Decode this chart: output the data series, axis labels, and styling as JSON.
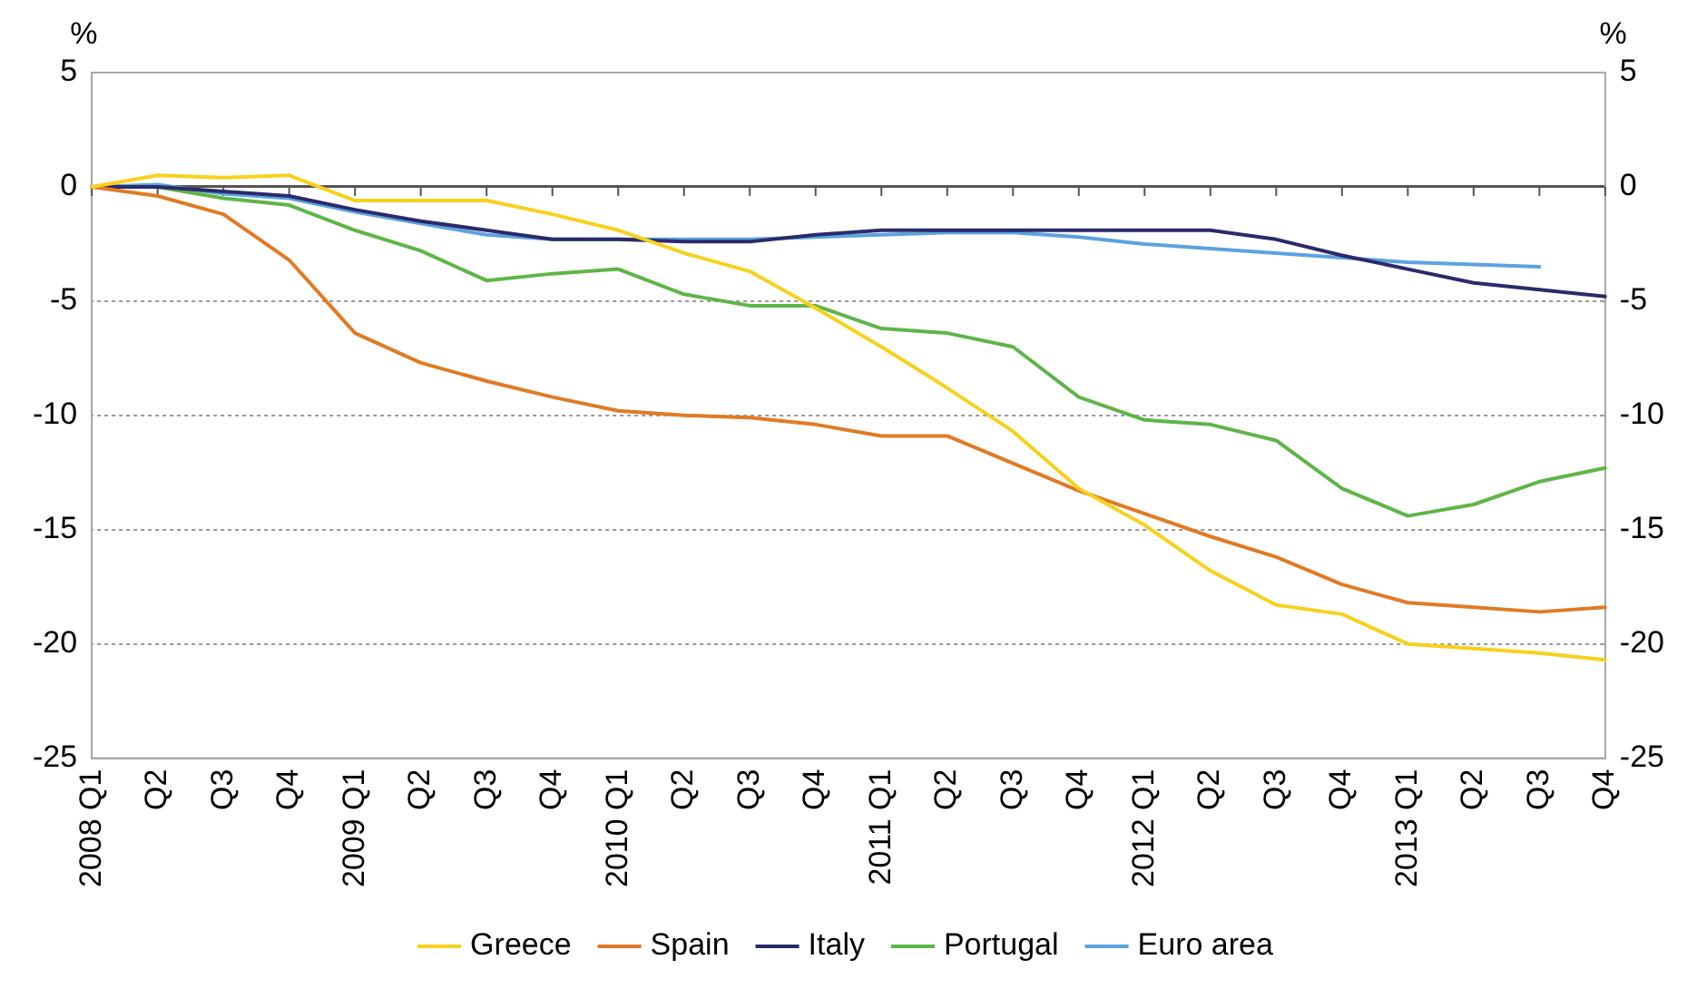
{
  "chart_data": {
    "type": "line",
    "ylabel": "%",
    "y2label": "%",
    "categories": [
      "2008 Q1",
      "Q2",
      "Q3",
      "Q4",
      "2009 Q1",
      "Q2",
      "Q3",
      "Q4",
      "2010 Q1",
      "Q2",
      "Q3",
      "Q4",
      "2011 Q1",
      "Q2",
      "Q3",
      "Q4",
      "2012 Q1",
      "Q2",
      "Q3",
      "Q4",
      "2013 Q1",
      "Q2",
      "Q3",
      "Q4"
    ],
    "series": [
      {
        "name": "Greece",
        "color": "#f7d11e",
        "values": [
          0,
          0.5,
          0.4,
          0.5,
          -0.6,
          -0.6,
          -0.6,
          -1.2,
          -1.9,
          -2.9,
          -3.7,
          -5.3,
          -7.0,
          -8.8,
          -10.7,
          -13.2,
          -14.8,
          -16.8,
          -18.3,
          -18.7,
          -20.0,
          -20.2,
          -20.4,
          -20.7
        ]
      },
      {
        "name": "Spain",
        "color": "#e07b24",
        "values": [
          0,
          -0.4,
          -1.2,
          -3.2,
          -6.4,
          -7.7,
          -8.5,
          -9.2,
          -9.8,
          -10.0,
          -10.1,
          -10.4,
          -10.9,
          -10.9,
          -12.1,
          -13.3,
          -14.3,
          -15.3,
          -16.2,
          -17.4,
          -18.2,
          -18.4,
          -18.6,
          -18.4
        ]
      },
      {
        "name": "Italy",
        "color": "#2b2a6b",
        "values": [
          0,
          0,
          -0.2,
          -0.4,
          -1.0,
          -1.5,
          -1.9,
          -2.3,
          -2.3,
          -2.4,
          -2.4,
          -2.1,
          -1.9,
          -1.9,
          -1.9,
          -1.9,
          -1.9,
          -1.9,
          -2.3,
          -3.0,
          -3.6,
          -4.2,
          -4.5,
          -4.8
        ]
      },
      {
        "name": "Portugal",
        "color": "#5fb548",
        "values": [
          0,
          0,
          -0.5,
          -0.8,
          -1.9,
          -2.8,
          -4.1,
          -3.8,
          -3.6,
          -4.7,
          -5.2,
          -5.2,
          -6.2,
          -6.4,
          -7.0,
          -9.2,
          -10.2,
          -10.4,
          -11.1,
          -13.2,
          -14.4,
          -13.9,
          -12.9,
          -12.3
        ]
      },
      {
        "name": "Euro area",
        "color": "#5ba3df",
        "values": [
          0,
          0.1,
          -0.3,
          -0.5,
          -1.1,
          -1.6,
          -2.1,
          -2.3,
          -2.3,
          -2.3,
          -2.3,
          -2.2,
          -2.1,
          -2.0,
          -2.0,
          -2.2,
          -2.5,
          -2.7,
          -2.9,
          -3.1,
          -3.3,
          -3.4,
          -3.5,
          null
        ]
      }
    ],
    "ylim": [
      -25,
      5
    ],
    "yticks": [
      5,
      0,
      -5,
      -10,
      -15,
      -20,
      -25
    ],
    "y2lim": [
      -25,
      5
    ],
    "y2ticks": [
      5,
      0,
      -5,
      -10,
      -15,
      -20,
      -25
    ],
    "grid": "y",
    "legend": "bottom",
    "marker": "none",
    "line_style": "solid"
  }
}
